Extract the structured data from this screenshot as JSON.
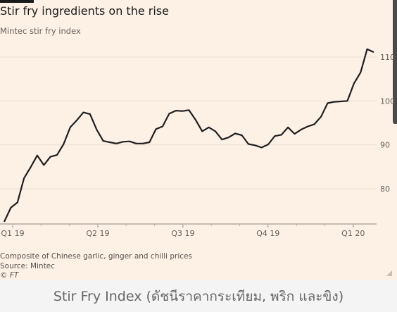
{
  "chart": {
    "title": "Stir fry ingredients on the rise",
    "subtitle": "Mintec stir fry index",
    "notes": "Composite of Chinese garlic, ginger and chilli prices",
    "source": "Source: Mintec",
    "copyright": "© FT"
  },
  "caption": "Stir Fry Index (ดัชนีราคากระเทียม, พริก และขิง)",
  "colors": {
    "background": "#fdf1e6",
    "line": "#1f1f1f",
    "gridline": "#e9ddd2",
    "caption_bg": "#f4f4f4"
  },
  "chart_data": {
    "type": "line",
    "title": "Stir fry ingredients on the rise",
    "subtitle": "Mintec stir fry index",
    "xlabel": "",
    "ylabel": "",
    "x_ticks": [
      "Q1 19",
      "Q2 19",
      "Q3 19",
      "Q4 19",
      "Q1 20"
    ],
    "y_ticks": [
      80,
      90,
      100,
      110
    ],
    "ylim": [
      72,
      114
    ],
    "grid": true,
    "y_axis_side": "right",
    "series": [
      {
        "values": [
          72.5,
          75.7,
          76.9,
          82.4,
          84.9,
          87.6,
          85.4,
          87.3,
          87.7,
          90.2,
          94.0,
          95.6,
          97.4,
          97.0,
          93.5,
          90.9,
          90.6,
          90.3,
          90.7,
          90.8,
          90.3,
          90.3,
          90.6,
          93.6,
          94.2,
          97.1,
          97.8,
          97.7,
          97.9,
          95.7,
          93.1,
          94.0,
          93.1,
          91.2,
          91.7,
          92.6,
          92.2,
          90.2,
          89.9,
          89.4,
          90.1,
          92.0,
          92.3,
          94.0,
          92.5,
          93.5,
          94.2,
          94.7,
          96.4,
          99.5,
          99.8,
          99.9,
          100.0,
          104.0,
          106.5,
          111.8,
          111.1
        ]
      }
    ]
  }
}
